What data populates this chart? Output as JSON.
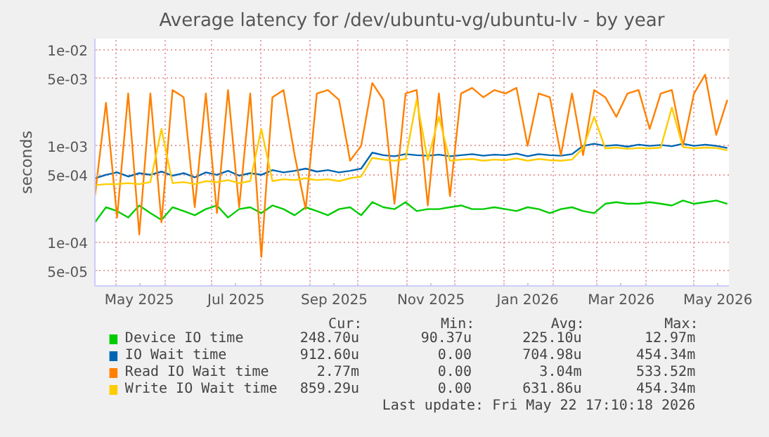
{
  "chart_data": {
    "type": "line",
    "title": "Average latency for /dev/ubuntu-vg/ubuntu-lv - by year",
    "ylabel": "seconds",
    "log": true,
    "grid": true,
    "legend": "bottom",
    "x": [
      "2025-04-18",
      "2025-04-25",
      "2025-05-02",
      "2025-05-09",
      "2025-05-16",
      "2025-05-23",
      "2025-05-30",
      "2025-06-06",
      "2025-06-13",
      "2025-06-20",
      "2025-06-27",
      "2025-07-04",
      "2025-07-11",
      "2025-07-18",
      "2025-07-25",
      "2025-08-01",
      "2025-08-08",
      "2025-08-15",
      "2025-08-22",
      "2025-08-29",
      "2025-09-05",
      "2025-09-12",
      "2025-09-19",
      "2025-09-26",
      "2025-10-03",
      "2025-10-10",
      "2025-10-17",
      "2025-10-24",
      "2025-10-31",
      "2025-11-07",
      "2025-11-14",
      "2025-11-21",
      "2025-11-28",
      "2025-12-05",
      "2025-12-12",
      "2025-12-19",
      "2025-12-26",
      "2026-01-02",
      "2026-01-09",
      "2026-01-16",
      "2026-01-23",
      "2026-01-30",
      "2026-02-06",
      "2026-02-13",
      "2026-02-20",
      "2026-02-27",
      "2026-03-06",
      "2026-03-13",
      "2026-03-20",
      "2026-03-27",
      "2026-04-03",
      "2026-04-10",
      "2026-04-17",
      "2026-04-24",
      "2026-05-01",
      "2026-05-08",
      "2026-05-15",
      "2026-05-22"
    ],
    "xlim": [
      "2025-04-18",
      "2026-05-23"
    ],
    "xticks": [
      {
        "value": "2025-05-01",
        "label": null
      },
      {
        "value": "2025-05-16",
        "label": "May 2025"
      },
      {
        "value": "2025-06-01",
        "label": null
      },
      {
        "value": "2025-07-01",
        "label": null
      },
      {
        "value": "2025-07-16",
        "label": "Jul 2025"
      },
      {
        "value": "2025-08-01",
        "label": null
      },
      {
        "value": "2025-09-01",
        "label": null
      },
      {
        "value": "2025-09-16",
        "label": "Sep 2025"
      },
      {
        "value": "2025-10-01",
        "label": null
      },
      {
        "value": "2025-11-01",
        "label": null
      },
      {
        "value": "2025-11-16",
        "label": "Nov 2025"
      },
      {
        "value": "2025-12-01",
        "label": null
      },
      {
        "value": "2026-01-01",
        "label": null
      },
      {
        "value": "2026-01-16",
        "label": "Jan 2026"
      },
      {
        "value": "2026-02-01",
        "label": null
      },
      {
        "value": "2026-03-01",
        "label": null
      },
      {
        "value": "2026-03-16",
        "label": "Mar 2026"
      },
      {
        "value": "2026-04-01",
        "label": null
      },
      {
        "value": "2026-05-01",
        "label": null
      },
      {
        "value": "2026-05-16",
        "label": "May 2026"
      }
    ],
    "ylim": [
      3.5e-05,
      0.013
    ],
    "yticks": [
      {
        "value": 5e-05,
        "label": "5e-05"
      },
      {
        "value": 0.0001,
        "label": "1e-04"
      },
      {
        "value": 0.0005,
        "label": "5e-04"
      },
      {
        "value": 0.001,
        "label": "1e-03"
      },
      {
        "value": 0.005,
        "label": "5e-03"
      },
      {
        "value": 0.01,
        "label": "1e-02"
      }
    ],
    "series": [
      {
        "name": "Device IO time",
        "color": "#00cc00",
        "values": [
          0.00016,
          0.00023,
          0.00021,
          0.00018,
          0.00024,
          0.0002,
          0.00017,
          0.00023,
          0.00021,
          0.00019,
          0.00022,
          0.00024,
          0.00018,
          0.00022,
          0.00023,
          0.0002,
          0.00024,
          0.00022,
          0.00019,
          0.00023,
          0.00021,
          0.00019,
          0.00022,
          0.00023,
          0.00019,
          0.00026,
          0.00023,
          0.00022,
          0.00026,
          0.00021,
          0.00022,
          0.00022,
          0.00023,
          0.00024,
          0.00022,
          0.00022,
          0.00023,
          0.00022,
          0.00021,
          0.00023,
          0.00022,
          0.0002,
          0.00022,
          0.00023,
          0.00021,
          0.0002,
          0.00025,
          0.00026,
          0.00025,
          0.00025,
          0.00026,
          0.00025,
          0.00024,
          0.00027,
          0.00025,
          0.00026,
          0.00027,
          0.00025
        ]
      },
      {
        "name": "IO Wait time",
        "color": "#0066b3",
        "values": [
          0.00046,
          0.0005,
          0.00053,
          0.00048,
          0.00052,
          0.0005,
          0.00054,
          0.00049,
          0.00052,
          0.00047,
          0.00053,
          0.0005,
          0.00055,
          0.00049,
          0.00052,
          0.0005,
          0.00056,
          0.00053,
          0.00055,
          0.00058,
          0.00054,
          0.00056,
          0.00053,
          0.00055,
          0.00058,
          0.00085,
          0.0008,
          0.00078,
          0.00082,
          0.0008,
          0.00079,
          0.00081,
          0.00078,
          0.0008,
          0.00082,
          0.00079,
          0.00081,
          0.0008,
          0.00083,
          0.00078,
          0.00082,
          0.0008,
          0.00079,
          0.00082,
          0.001,
          0.00105,
          0.001,
          0.00102,
          0.00098,
          0.00103,
          0.001,
          0.00102,
          0.00099,
          0.00105,
          0.001,
          0.00103,
          0.001,
          0.00095
        ]
      },
      {
        "name": "Read IO Wait time",
        "color": "#ff8000",
        "values": [
          0.0003,
          0.0028,
          0.00018,
          0.0035,
          0.00012,
          0.0035,
          0.00016,
          0.0038,
          0.0032,
          0.00023,
          0.0035,
          0.0002,
          0.0038,
          0.00023,
          0.0035,
          7e-05,
          0.0032,
          0.0038,
          0.0008,
          0.00022,
          0.0035,
          0.0038,
          0.003,
          0.0007,
          0.001,
          0.0045,
          0.003,
          0.00025,
          0.0035,
          0.0038,
          0.00024,
          0.0035,
          0.0003,
          0.0035,
          0.004,
          0.0032,
          0.0038,
          0.0035,
          0.004,
          0.001,
          0.0035,
          0.0032,
          0.0008,
          0.0035,
          0.0008,
          0.0038,
          0.0032,
          0.002,
          0.0035,
          0.0038,
          0.0015,
          0.0035,
          0.0038,
          0.001,
          0.0035,
          0.0055,
          0.0013,
          0.003
        ]
      },
      {
        "name": "Write IO Wait time",
        "color": "#ffcc00",
        "values": [
          0.00039,
          0.0004,
          0.0004,
          0.00041,
          0.0004,
          0.00042,
          0.0015,
          0.00041,
          0.00042,
          0.0004,
          0.00043,
          0.00042,
          0.00044,
          0.00041,
          0.00043,
          0.0015,
          0.00043,
          0.00045,
          0.00044,
          0.00046,
          0.00044,
          0.00045,
          0.00043,
          0.00046,
          0.00048,
          0.00075,
          0.00072,
          0.0007,
          0.00073,
          0.003,
          0.00071,
          0.002,
          0.0007,
          0.00072,
          0.00073,
          0.0007,
          0.00072,
          0.00071,
          0.00074,
          0.0007,
          0.00073,
          0.00071,
          0.0007,
          0.00072,
          0.00095,
          0.002,
          0.00094,
          0.00096,
          0.00093,
          0.00095,
          0.00094,
          0.00096,
          0.0025,
          0.00097,
          0.00094,
          0.00096,
          0.00095,
          0.0009
        ]
      }
    ],
    "annotations": [
      "Cur:",
      "Min:",
      "Avg:",
      "Max:",
      "248.70u",
      "90.37u",
      "225.10u",
      "12.97m",
      "912.60u",
      "0.00",
      "704.98u",
      "454.34m",
      "2.77m",
      "0.00",
      "3.04m",
      "533.52m",
      "859.29u",
      "0.00",
      "631.86u",
      "454.34m",
      "Last update: Fri May 22 17:10:18 2026"
    ]
  }
}
